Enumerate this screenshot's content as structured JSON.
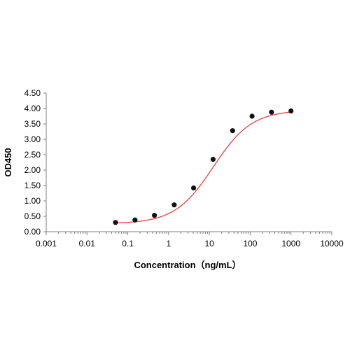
{
  "chart_data": {
    "type": "scatter",
    "title": "",
    "xlabel": "Concentration（ng/mL）",
    "ylabel": "OD450",
    "xscale": "log",
    "xlim": [
      0.001,
      10000
    ],
    "ylim": [
      0,
      4.5
    ],
    "x_tick_labels": [
      "0.001",
      "0.01",
      "0.1",
      "1",
      "10",
      "100",
      "1000",
      "10000"
    ],
    "y_tick_labels": [
      "0.00",
      "0.50",
      "1.00",
      "1.50",
      "2.00",
      "2.50",
      "3.00",
      "3.50",
      "4.00",
      "4.50"
    ],
    "grid": false,
    "legend": "none",
    "series": [
      {
        "x": [
          0.05,
          0.15,
          0.45,
          1.37,
          4.1,
          12.3,
          37,
          111,
          333,
          1000
        ],
        "y": [
          0.3,
          0.38,
          0.53,
          0.87,
          1.42,
          2.35,
          3.28,
          3.75,
          3.88,
          3.92
        ],
        "marker_color": "#111111",
        "fit": {
          "model": "4PL",
          "bottom": 0.26,
          "top": 3.95,
          "ec50": 12.5,
          "hill": 0.92,
          "color": "#e8413f"
        }
      }
    ]
  }
}
